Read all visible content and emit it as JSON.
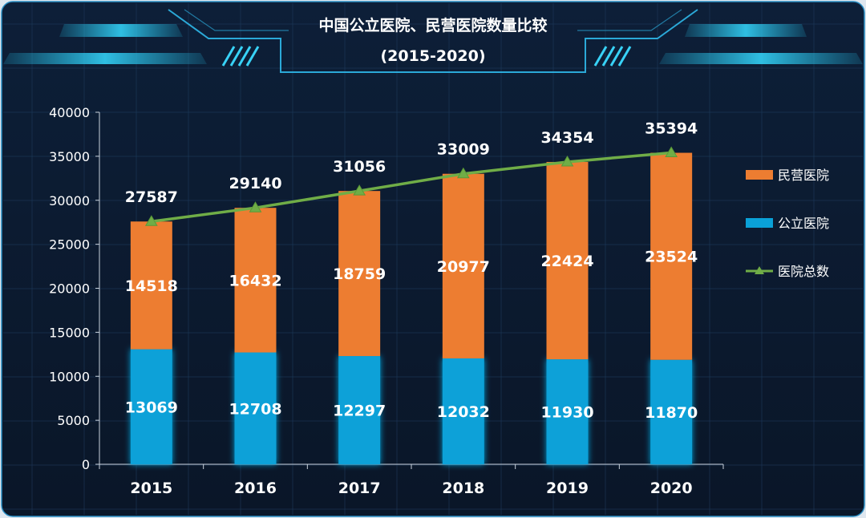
{
  "chart_data": {
    "type": "bar",
    "stacked": true,
    "title": "中国公立医院、民营医院数量比较",
    "subtitle": "(2015-2020)",
    "categories": [
      "2015",
      "2016",
      "2017",
      "2018",
      "2019",
      "2020"
    ],
    "series": [
      {
        "name": "公立医院",
        "type": "bar",
        "values": [
          13069,
          12708,
          12297,
          12032,
          11930,
          11870
        ],
        "color": "#0aa1d8"
      },
      {
        "name": "民营医院",
        "type": "bar",
        "values": [
          14518,
          16432,
          18759,
          20977,
          22424,
          23524
        ],
        "color": "#ed7d31"
      },
      {
        "name": "医院总数",
        "type": "line",
        "values": [
          27587,
          29140,
          31056,
          33009,
          34354,
          35394
        ],
        "color": "#70ad47"
      }
    ],
    "ylim": [
      0,
      40000
    ],
    "yticks": [
      "0",
      "5000",
      "10000",
      "15000",
      "20000",
      "25000",
      "30000",
      "35000",
      "40000"
    ],
    "legend": [
      {
        "name": "民营医院",
        "kind": "bar",
        "color": "#ed7d31"
      },
      {
        "name": "公立医院",
        "kind": "bar",
        "color": "#0aa1d8"
      },
      {
        "name": "医院总数",
        "kind": "line",
        "color": "#70ad47"
      }
    ],
    "legend_position": "right",
    "grid": true
  }
}
